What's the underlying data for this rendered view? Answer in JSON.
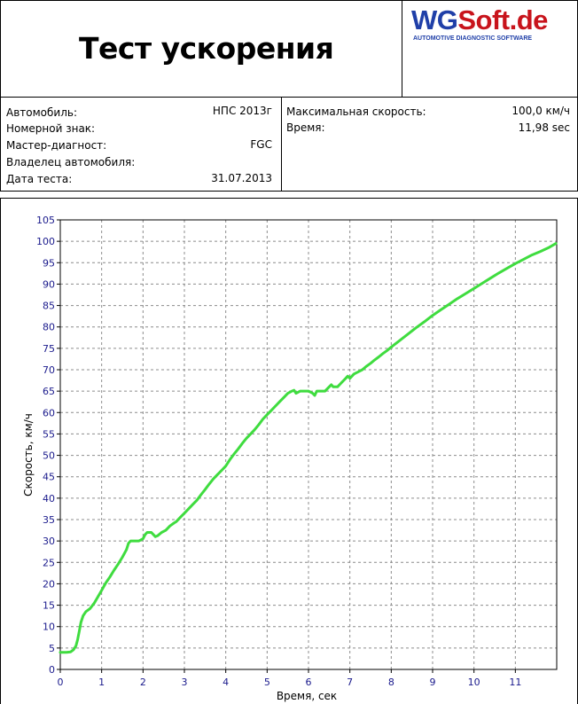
{
  "header": {
    "title": "Тест ускорения",
    "logo": {
      "wg": "WG",
      "soft": "Soft.de",
      "tagline": "AUTOMOTIVE DIAGNOSTIC SOFTWARE"
    }
  },
  "info_left": [
    {
      "label": "Автомобиль:",
      "value": "НПС  2013г"
    },
    {
      "label": "Номерной  знак:",
      "value": ""
    },
    {
      "label": "Мастер-диагност:",
      "value": "FGC"
    },
    {
      "label": "Владелец  автомобиля:",
      "value": ""
    },
    {
      "label": "Дата теста:",
      "value": "31.07.2013"
    }
  ],
  "info_right": [
    {
      "label": "Максимальная  скорость:",
      "value": "100,0 км/ч"
    },
    {
      "label": "Время:",
      "value": "11,98 sec"
    }
  ],
  "colors": {
    "line": "#3fdc3f",
    "axis_text": "#1a1a8c",
    "grid": "#8c8c8c"
  },
  "chart_data": {
    "type": "line",
    "xlabel": "Время, сек",
    "ylabel": "Скорость, км/ч",
    "xlim": [
      0,
      12
    ],
    "ylim": [
      0,
      105
    ],
    "xticks": [
      0,
      1,
      2,
      3,
      4,
      5,
      6,
      7,
      8,
      9,
      10,
      11
    ],
    "yticks": [
      0,
      5,
      10,
      15,
      20,
      25,
      30,
      35,
      40,
      45,
      50,
      55,
      60,
      65,
      70,
      75,
      80,
      85,
      90,
      95,
      100,
      105
    ],
    "grid": true,
    "series": [
      {
        "x": [
          0,
          0.15,
          0.25,
          0.32,
          0.38,
          0.42,
          0.46,
          0.5,
          0.55,
          0.62,
          0.72,
          0.82,
          0.9,
          1.0,
          1.1,
          1.2,
          1.3,
          1.4,
          1.5,
          1.6,
          1.65,
          1.7,
          1.75,
          1.8,
          1.9,
          2.0,
          2.05,
          2.1,
          2.2,
          2.3,
          2.35,
          2.45,
          2.55,
          2.65,
          2.75,
          2.8,
          2.9,
          3.0,
          3.1,
          3.2,
          3.3,
          3.4,
          3.5,
          3.6,
          3.7,
          3.8,
          3.9,
          4.0,
          4.1,
          4.2,
          4.3,
          4.4,
          4.5,
          4.6,
          4.7,
          4.8,
          4.9,
          5.0,
          5.1,
          5.2,
          5.3,
          5.4,
          5.5,
          5.6,
          5.65,
          5.7,
          5.8,
          5.9,
          6.0,
          6.1,
          6.15,
          6.2,
          6.3,
          6.4,
          6.5,
          6.55,
          6.6,
          6.7,
          6.8,
          6.9,
          6.95,
          7.0,
          7.1,
          7.2,
          7.3,
          7.4,
          7.5,
          7.6,
          7.7,
          7.8,
          7.9,
          8.0,
          8.2,
          8.4,
          8.6,
          8.8,
          9.0,
          9.2,
          9.4,
          9.6,
          9.8,
          10.0,
          10.2,
          10.4,
          10.6,
          10.8,
          11.0,
          11.2,
          11.4,
          11.6,
          11.8,
          11.98
        ],
        "values": [
          4,
          4,
          4.1,
          4.6,
          5.5,
          7,
          9,
          11,
          12.5,
          13.5,
          14.2,
          15.5,
          16.8,
          18.5,
          20.2,
          21.6,
          23.2,
          24.6,
          26.2,
          28,
          29.5,
          30,
          30,
          30,
          30,
          30.5,
          31.5,
          32,
          32,
          31,
          31.2,
          32,
          32.5,
          33.5,
          34.2,
          34.5,
          35.5,
          36.5,
          37.5,
          38.5,
          39.5,
          40.8,
          42,
          43.3,
          44.5,
          45.5,
          46.5,
          47.5,
          49,
          50.3,
          51.5,
          52.8,
          54,
          55,
          56,
          57.2,
          58.5,
          59.5,
          60.5,
          61.5,
          62.5,
          63.5,
          64.5,
          65,
          65.2,
          64.5,
          65,
          65,
          65,
          64.5,
          64,
          65,
          65,
          65,
          66,
          66.5,
          66,
          66,
          67,
          68,
          68.5,
          68,
          69,
          69.5,
          70,
          70.8,
          71.5,
          72.3,
          73,
          73.8,
          74.5,
          75.3,
          76.8,
          78.3,
          79.8,
          81.2,
          82.7,
          84,
          85.3,
          86.6,
          87.8,
          89,
          90.2,
          91.4,
          92.6,
          93.7,
          94.8,
          95.8,
          96.8,
          97.6,
          98.5,
          99.5
        ]
      }
    ]
  }
}
